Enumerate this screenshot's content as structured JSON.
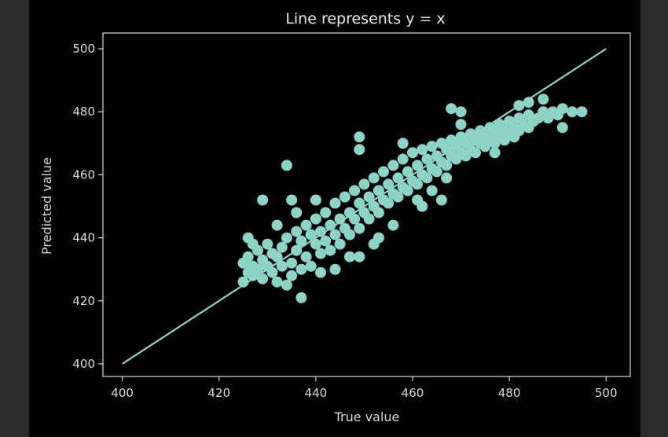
{
  "chart_data": {
    "type": "scatter",
    "title": "Line represents y = x",
    "xlabel": "True value",
    "ylabel": "Predicted value",
    "xlim": [
      396,
      505
    ],
    "ylim": [
      396,
      505
    ],
    "xticks": [
      400,
      420,
      440,
      460,
      480,
      500
    ],
    "yticks": [
      400,
      420,
      440,
      460,
      480,
      500
    ],
    "grid": false,
    "legend": "none",
    "colors": {
      "points": "#8dd3c7",
      "line": "#8dd3c7",
      "axes": "#d9d9d9",
      "background": "#000000"
    },
    "reference_line": {
      "label": "y = x",
      "x": [
        400,
        500
      ],
      "y": [
        400,
        500
      ]
    },
    "series": [
      {
        "points": [
          [
            425,
            426
          ],
          [
            425,
            432
          ],
          [
            426,
            429
          ],
          [
            426,
            434
          ],
          [
            427,
            431
          ],
          [
            427,
            428
          ],
          [
            428,
            436
          ],
          [
            428,
            430
          ],
          [
            429,
            433
          ],
          [
            429,
            427
          ],
          [
            430,
            438
          ],
          [
            430,
            431
          ],
          [
            431,
            435
          ],
          [
            431,
            429
          ],
          [
            432,
            434
          ],
          [
            432,
            426
          ],
          [
            433,
            437
          ],
          [
            433,
            431
          ],
          [
            434,
            425
          ],
          [
            434,
            440
          ],
          [
            435,
            432
          ],
          [
            435,
            428
          ],
          [
            436,
            436
          ],
          [
            436,
            442
          ],
          [
            437,
            430
          ],
          [
            437,
            439
          ],
          [
            438,
            444
          ],
          [
            438,
            434
          ],
          [
            439,
            441
          ],
          [
            439,
            431
          ],
          [
            440,
            438
          ],
          [
            440,
            446
          ],
          [
            441,
            435
          ],
          [
            441,
            442
          ],
          [
            442,
            448
          ],
          [
            442,
            439
          ],
          [
            443,
            444
          ],
          [
            443,
            436
          ],
          [
            444,
            451
          ],
          [
            444,
            441
          ],
          [
            445,
            446
          ],
          [
            445,
            438
          ],
          [
            446,
            453
          ],
          [
            446,
            443
          ],
          [
            447,
            448
          ],
          [
            447,
            441
          ],
          [
            448,
            455
          ],
          [
            448,
            446
          ],
          [
            449,
            451
          ],
          [
            449,
            443
          ],
          [
            450,
            457
          ],
          [
            450,
            448
          ],
          [
            451,
            453
          ],
          [
            451,
            446
          ],
          [
            452,
            459
          ],
          [
            452,
            450
          ],
          [
            453,
            455
          ],
          [
            453,
            448
          ],
          [
            454,
            461
          ],
          [
            454,
            452
          ],
          [
            455,
            457
          ],
          [
            455,
            451
          ],
          [
            456,
            463
          ],
          [
            456,
            454
          ],
          [
            457,
            459
          ],
          [
            457,
            453
          ],
          [
            458,
            465
          ],
          [
            458,
            456
          ],
          [
            459,
            461
          ],
          [
            459,
            455
          ],
          [
            460,
            467
          ],
          [
            460,
            458
          ],
          [
            461,
            463
          ],
          [
            461,
            457
          ],
          [
            462,
            468
          ],
          [
            462,
            460
          ],
          [
            463,
            465
          ],
          [
            463,
            459
          ],
          [
            464,
            469
          ],
          [
            464,
            462
          ],
          [
            465,
            466
          ],
          [
            465,
            461
          ],
          [
            466,
            470
          ],
          [
            466,
            464
          ],
          [
            467,
            468
          ],
          [
            467,
            463
          ],
          [
            468,
            471
          ],
          [
            468,
            466
          ],
          [
            469,
            469
          ],
          [
            469,
            465
          ],
          [
            470,
            472
          ],
          [
            470,
            467
          ],
          [
            471,
            470
          ],
          [
            471,
            466
          ],
          [
            472,
            473
          ],
          [
            472,
            468
          ],
          [
            473,
            471
          ],
          [
            473,
            467
          ],
          [
            474,
            474
          ],
          [
            474,
            470
          ],
          [
            475,
            472
          ],
          [
            475,
            469
          ],
          [
            476,
            475
          ],
          [
            476,
            471
          ],
          [
            477,
            473
          ],
          [
            477,
            470
          ],
          [
            478,
            476
          ],
          [
            478,
            472
          ],
          [
            479,
            474
          ],
          [
            479,
            471
          ],
          [
            480,
            477
          ],
          [
            480,
            473
          ],
          [
            481,
            475
          ],
          [
            481,
            472
          ],
          [
            482,
            478
          ],
          [
            482,
            474
          ],
          [
            483,
            476
          ],
          [
            484,
            479
          ],
          [
            484,
            475
          ],
          [
            485,
            477
          ],
          [
            486,
            478
          ],
          [
            487,
            480
          ],
          [
            488,
            478
          ],
          [
            489,
            480
          ],
          [
            490,
            479
          ],
          [
            491,
            481
          ],
          [
            493,
            480
          ],
          [
            495,
            480
          ],
          [
            429,
            452
          ],
          [
            434,
            463
          ],
          [
            435,
            452
          ],
          [
            449,
            472
          ],
          [
            449,
            468
          ],
          [
            447,
            434
          ],
          [
            449,
            434
          ],
          [
            453,
            440
          ],
          [
            461,
            452
          ],
          [
            462,
            450
          ],
          [
            464,
            455
          ],
          [
            467,
            459
          ],
          [
            468,
            481
          ],
          [
            470,
            480
          ],
          [
            482,
            482
          ],
          [
            484,
            483
          ],
          [
            487,
            484
          ],
          [
            491,
            475
          ],
          [
            426,
            440
          ],
          [
            437,
            421
          ],
          [
            432,
            444
          ],
          [
            444,
            430
          ],
          [
            456,
            444
          ],
          [
            458,
            470
          ],
          [
            440,
            452
          ],
          [
            436,
            448
          ],
          [
            452,
            438
          ],
          [
            470,
            476
          ],
          [
            477,
            467
          ],
          [
            466,
            452
          ],
          [
            441,
            429
          ],
          [
            427,
            438
          ]
        ]
      }
    ]
  }
}
